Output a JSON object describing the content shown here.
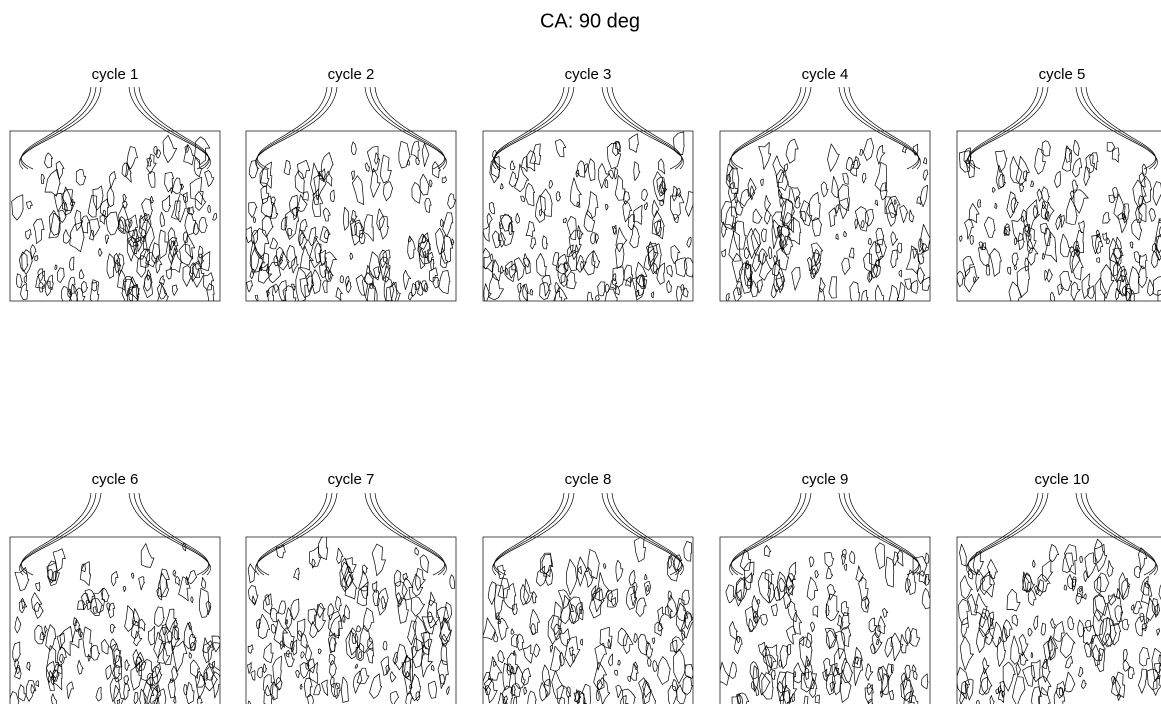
{
  "title": "CA: 90 deg",
  "panels": [
    {
      "label": "cycle 1"
    },
    {
      "label": "cycle 2"
    },
    {
      "label": "cycle 3"
    },
    {
      "label": "cycle 4"
    },
    {
      "label": "cycle 5"
    },
    {
      "label": "cycle 6"
    },
    {
      "label": "cycle 7"
    },
    {
      "label": "cycle 8"
    },
    {
      "label": "cycle 9"
    },
    {
      "label": "cycle 10"
    }
  ]
}
